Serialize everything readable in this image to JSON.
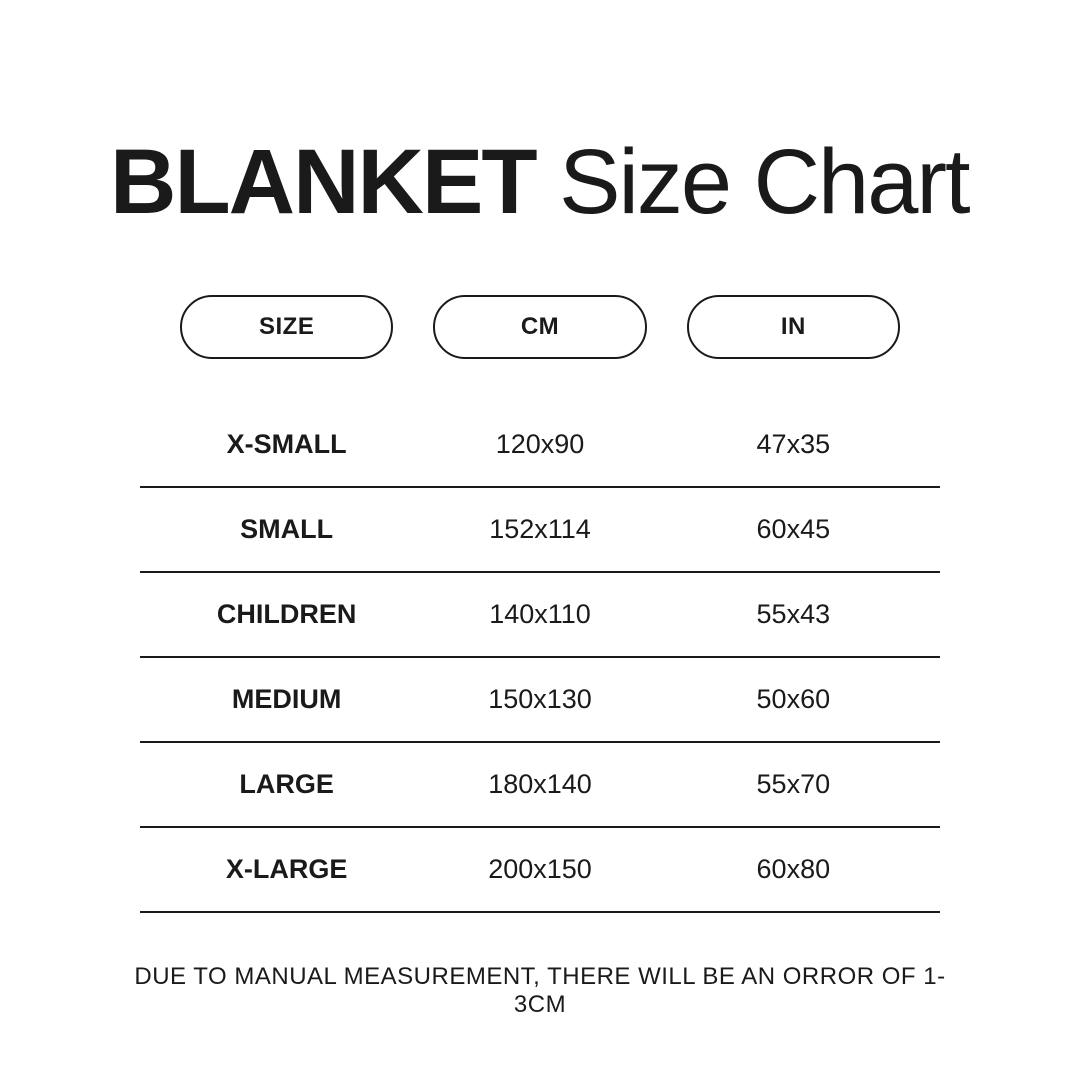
{
  "title": {
    "bold": "BLANKET",
    "light": " Size Chart"
  },
  "headers": [
    {
      "label": "SIZE"
    },
    {
      "label": "CM"
    },
    {
      "label": "IN"
    }
  ],
  "rows": [
    {
      "size": "X-SMALL",
      "cm": "120x90",
      "in": "47x35"
    },
    {
      "size": "SMALL",
      "cm": "152x114",
      "in": "60x45"
    },
    {
      "size": "CHILDREN",
      "cm": "140x110",
      "in": "55x43"
    },
    {
      "size": "MEDIUM",
      "cm": "150x130",
      "in": "50x60"
    },
    {
      "size": "LARGE",
      "cm": "180x140",
      "in": "55x70"
    },
    {
      "size": "X-LARGE",
      "cm": "200x150",
      "in": "60x80"
    }
  ],
  "footnote": "DUE TO MANUAL MEASUREMENT, THERE WILL BE AN ORROR OF 1-3CM",
  "styling": {
    "background_color": "#ffffff",
    "text_color": "#1a1a1a",
    "border_color": "#1a1a1a",
    "title_fontsize": 92,
    "header_fontsize": 24,
    "cell_fontsize": 27,
    "footnote_fontsize": 24,
    "pill_border_width": 2,
    "row_border_width": 2,
    "table_type": "table",
    "columns": [
      "SIZE",
      "CM",
      "IN"
    ],
    "column_count": 3,
    "row_count": 6
  }
}
